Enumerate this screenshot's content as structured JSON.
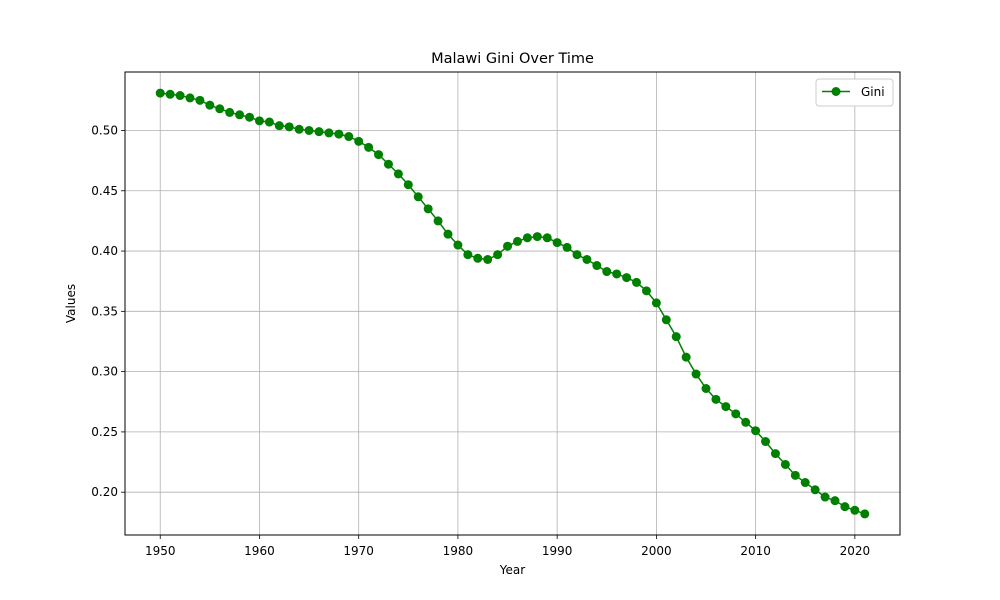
{
  "chart_data": {
    "type": "line",
    "title": "Malawi Gini Over Time",
    "xlabel": "Year",
    "ylabel": "Values",
    "xlim": [
      1946.45,
      2024.55
    ],
    "ylim": [
      0.1645,
      0.5485
    ],
    "xticks": [
      1950,
      1960,
      1970,
      1980,
      1990,
      2000,
      2010,
      2020
    ],
    "yticks": [
      0.2,
      0.25,
      0.3,
      0.35,
      0.4,
      0.45,
      0.5
    ],
    "grid": true,
    "legend_position": "top-right",
    "series": [
      {
        "name": "Gini",
        "color": "#008000",
        "marker": "circle",
        "x": [
          1950,
          1951,
          1952,
          1953,
          1954,
          1955,
          1956,
          1957,
          1958,
          1959,
          1960,
          1961,
          1962,
          1963,
          1964,
          1965,
          1966,
          1967,
          1968,
          1969,
          1970,
          1971,
          1972,
          1973,
          1974,
          1975,
          1976,
          1977,
          1978,
          1979,
          1980,
          1981,
          1982,
          1983,
          1984,
          1985,
          1986,
          1987,
          1988,
          1989,
          1990,
          1991,
          1992,
          1993,
          1994,
          1995,
          1996,
          1997,
          1998,
          1999,
          2000,
          2001,
          2002,
          2003,
          2004,
          2005,
          2006,
          2007,
          2008,
          2009,
          2010,
          2011,
          2012,
          2013,
          2014,
          2015,
          2016,
          2017,
          2018,
          2019,
          2020,
          2021
        ],
        "values": [
          0.531,
          0.53,
          0.529,
          0.527,
          0.525,
          0.521,
          0.518,
          0.515,
          0.513,
          0.511,
          0.508,
          0.507,
          0.504,
          0.503,
          0.501,
          0.5,
          0.499,
          0.498,
          0.497,
          0.495,
          0.491,
          0.486,
          0.48,
          0.472,
          0.464,
          0.455,
          0.445,
          0.435,
          0.425,
          0.414,
          0.405,
          0.397,
          0.394,
          0.393,
          0.397,
          0.404,
          0.408,
          0.411,
          0.412,
          0.411,
          0.407,
          0.403,
          0.397,
          0.393,
          0.388,
          0.383,
          0.381,
          0.378,
          0.374,
          0.367,
          0.357,
          0.343,
          0.329,
          0.312,
          0.298,
          0.286,
          0.277,
          0.271,
          0.265,
          0.258,
          0.251,
          0.242,
          0.232,
          0.223,
          0.214,
          0.208,
          0.202,
          0.196,
          0.193,
          0.188,
          0.185,
          0.182
        ]
      }
    ]
  }
}
